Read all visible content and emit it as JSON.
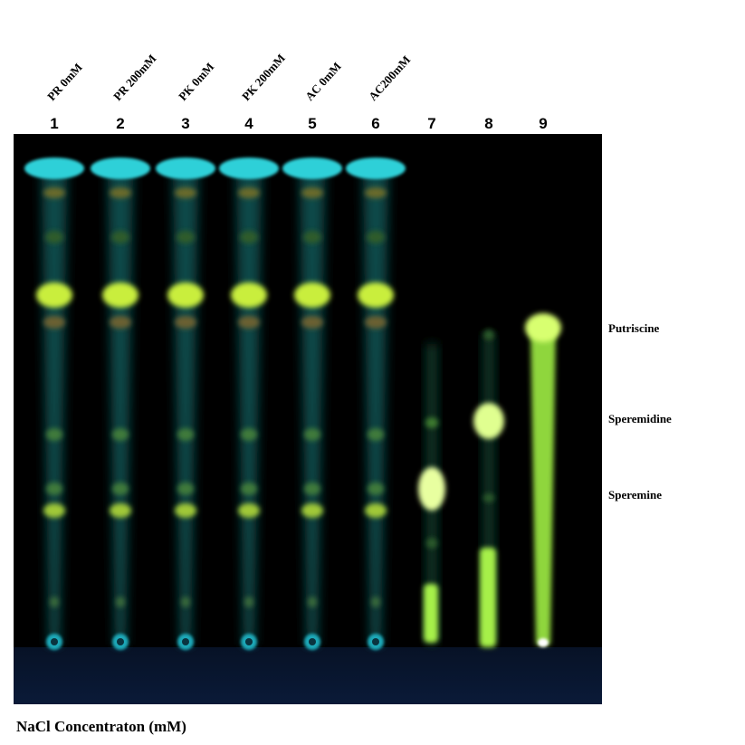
{
  "lanes": [
    {
      "number": "1",
      "label": "PR 0mM"
    },
    {
      "number": "2",
      "label": "PR 200mM"
    },
    {
      "number": "3",
      "label": "PK 0mM"
    },
    {
      "number": "4",
      "label": "PK 200mM"
    },
    {
      "number": "5",
      "label": "AC 0mM"
    },
    {
      "number": "6",
      "label": "AC200mM"
    },
    {
      "number": "7"
    },
    {
      "number": "8"
    },
    {
      "number": "9"
    }
  ],
  "standards": [
    {
      "label": "Putriscine"
    },
    {
      "label": "Speremidine"
    },
    {
      "label": "Speremine"
    }
  ],
  "caption": "NaCl  Concentraton (mM)"
}
